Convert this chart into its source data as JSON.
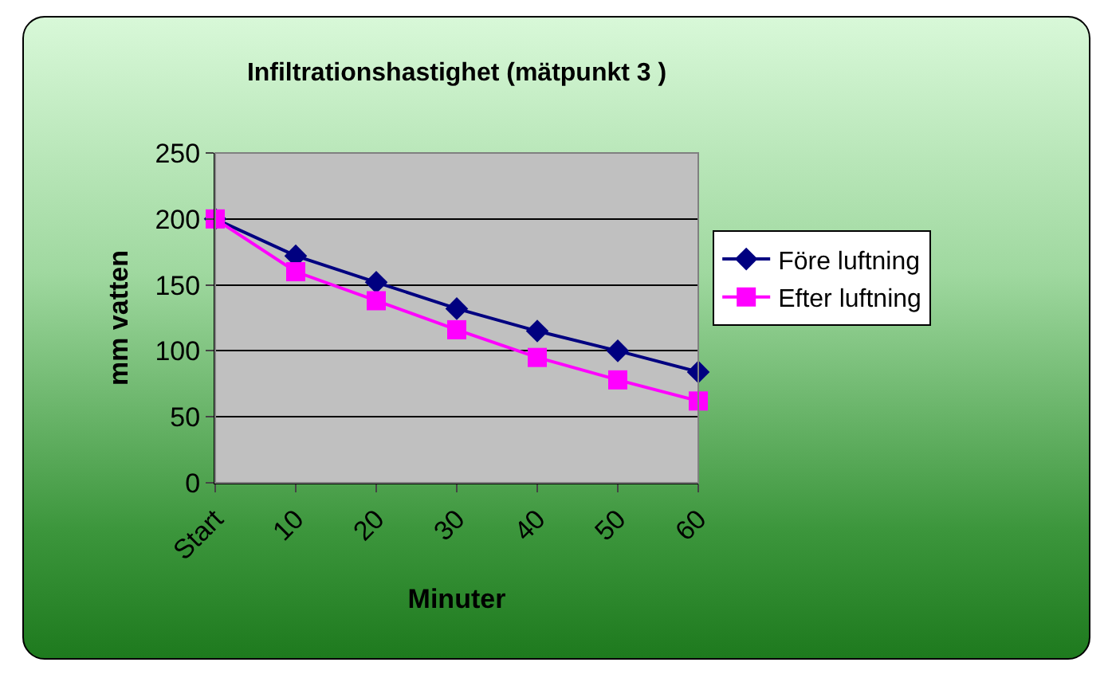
{
  "chart_data": {
    "type": "line",
    "title": "Infiltrationshastighet (mätpunkt 3 )",
    "xlabel": "Minuter",
    "ylabel": "mm vatten",
    "categories": [
      "Start",
      "10",
      "20",
      "30",
      "40",
      "50",
      "60"
    ],
    "series": [
      {
        "name": "Före luftning",
        "color": "#000080",
        "marker": "diamond",
        "values": [
          200,
          172,
          152,
          132,
          115,
          100,
          84
        ]
      },
      {
        "name": "Efter luftning",
        "color": "#ff00ff",
        "marker": "square",
        "values": [
          200,
          160,
          138,
          116,
          95,
          78,
          62
        ]
      }
    ],
    "ylim": [
      0,
      250
    ],
    "yticks": [
      0,
      50,
      100,
      150,
      200,
      250
    ],
    "grid": "y",
    "legend": "right",
    "line_style": "solid"
  }
}
